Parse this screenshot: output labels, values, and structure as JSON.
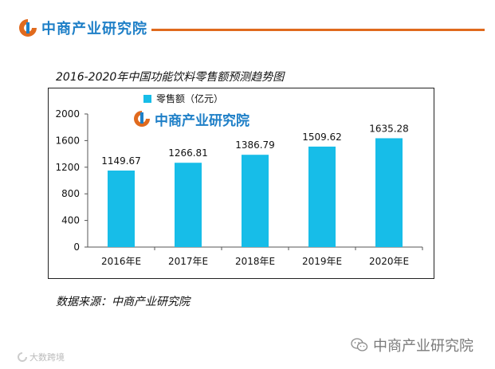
{
  "header": {
    "brand_name": "中商产业研究院",
    "brand_color": "#1e7fc7",
    "rule_color": "#e06a1e"
  },
  "chart_title": "2016-2020年中国功能饮料零售额预测趋势图",
  "source_text": "数据来源：中商产业研究院",
  "footer": {
    "brand_name": "中商产业研究院",
    "icon": "wechat-icon"
  },
  "watermark": {
    "text": "大数跨境"
  },
  "chart_data": {
    "type": "bar",
    "categories": [
      "2016年E",
      "2017年E",
      "2018年E",
      "2019年E",
      "2020年E"
    ],
    "series": [
      {
        "name": "零售额（亿元）",
        "values": [
          1149.67,
          1266.81,
          1386.79,
          1509.62,
          1635.28
        ],
        "color": "#17bde8"
      }
    ],
    "value_labels": [
      "1149.67",
      "1266.81",
      "1386.79",
      "1509.62",
      "1635.28"
    ],
    "ylim": [
      0,
      2000
    ],
    "yticks": [
      0,
      400,
      800,
      1200,
      1600,
      2000
    ],
    "legend_position": "top-left",
    "watermark_text": "中商产业研究院"
  }
}
